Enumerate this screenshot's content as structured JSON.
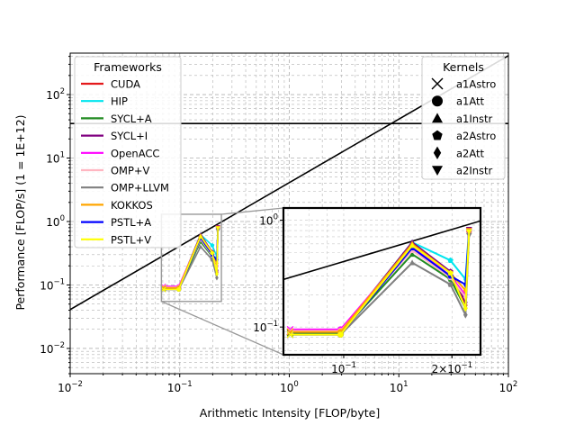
{
  "chart_data": {
    "type": "scatter",
    "xlabel": "Arithmetic Intensity [FLOP/byte]",
    "ylabel": "Performance [FLOP/s] (1 = 1E+12)",
    "xscale": "log",
    "yscale": "log",
    "xlim": [
      0.01,
      100
    ],
    "ylim": [
      0.004,
      450
    ],
    "grid": true,
    "x_ticks": [
      "10^-2",
      "10^-1",
      "10^0",
      "10^1",
      "10^2"
    ],
    "y_ticks": [
      "10^-2",
      "10^-1",
      "10^0",
      "10^1",
      "10^2"
    ],
    "roofline": {
      "bandwidth_slope": 4.1,
      "peak_compute": 35
    },
    "legend_frameworks": {
      "title": "Frameworks",
      "placement": "top-left",
      "items": [
        {
          "label": "CUDA",
          "color": "#e41a1c"
        },
        {
          "label": "HIP",
          "color": "#00e5ee"
        },
        {
          "label": "SYCL+A",
          "color": "#228b22"
        },
        {
          "label": "SYCL+I",
          "color": "#800080"
        },
        {
          "label": "OpenACC",
          "color": "#ff00ff"
        },
        {
          "label": "OMP+V",
          "color": "#ffb6c1"
        },
        {
          "label": "OMP+LLVM",
          "color": "#808080"
        },
        {
          "label": "KOKKOS",
          "color": "#ffa500"
        },
        {
          "label": "PSTL+A",
          "color": "#0000ff"
        },
        {
          "label": "PSTL+V",
          "color": "#ffff00"
        }
      ]
    },
    "legend_kernels": {
      "title": "Kernels",
      "placement": "top-right",
      "items": [
        {
          "label": "a1Astro",
          "marker": "x"
        },
        {
          "label": "a1Att",
          "marker": "circle"
        },
        {
          "label": "a1Instr",
          "marker": "triangle-up"
        },
        {
          "label": "a2Astro",
          "marker": "pentagon"
        },
        {
          "label": "a2Att",
          "marker": "diamond"
        },
        {
          "label": "a2Instr",
          "marker": "triangle-down"
        }
      ]
    },
    "kernel_x": [
      0.071,
      0.098,
      0.155,
      0.198,
      0.218,
      0.223
    ],
    "series": [
      {
        "name": "CUDA",
        "values": [
          0.09,
          0.09,
          0.55,
          0.3,
          0.16,
          0.75
        ]
      },
      {
        "name": "HIP",
        "values": [
          0.09,
          0.09,
          0.62,
          0.42,
          0.28,
          0.82
        ]
      },
      {
        "name": "SYCL+A",
        "values": [
          0.088,
          0.088,
          0.48,
          0.28,
          0.15,
          0.78
        ]
      },
      {
        "name": "SYCL+I",
        "values": [
          0.09,
          0.09,
          0.62,
          0.33,
          0.17,
          0.82
        ]
      },
      {
        "name": "OpenACC",
        "values": [
          0.095,
          0.095,
          0.58,
          0.3,
          0.2,
          0.8
        ]
      },
      {
        "name": "OMP+V",
        "values": [
          0.092,
          0.092,
          0.52,
          0.29,
          0.19,
          0.77
        ]
      },
      {
        "name": "OMP+LLVM",
        "values": [
          0.085,
          0.085,
          0.4,
          0.25,
          0.13,
          0.72
        ]
      },
      {
        "name": "KOKKOS",
        "values": [
          0.09,
          0.09,
          0.6,
          0.32,
          0.22,
          0.8
        ]
      },
      {
        "name": "PSTL+A",
        "values": [
          0.085,
          0.085,
          0.55,
          0.3,
          0.25,
          0.78
        ]
      },
      {
        "name": "PSTL+V",
        "values": [
          0.085,
          0.085,
          0.58,
          0.32,
          0.15,
          0.78
        ]
      }
    ],
    "inset": {
      "xlim": [
        0.068,
        0.24
      ],
      "ylim": [
        0.055,
        1.3
      ],
      "x_ticks": [
        "10^-1",
        "2×10^-1"
      ],
      "y_ticks": [
        "10^-1",
        "10^0"
      ]
    }
  }
}
